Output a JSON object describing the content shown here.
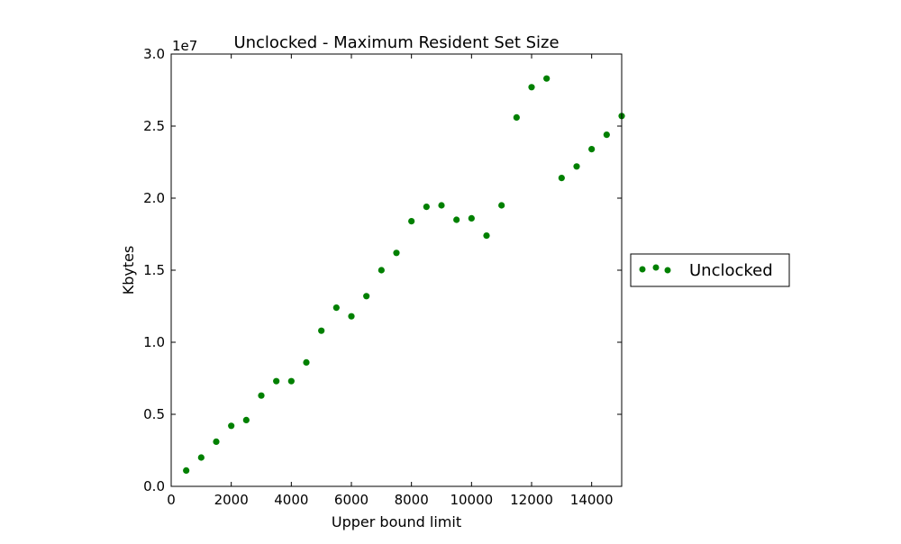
{
  "chart_data": {
    "type": "scatter",
    "title": "Unclocked - Maximum Resident Set Size",
    "xlabel": "Upper bound limit",
    "ylabel": "Kbytes",
    "y_scale_label": "1e7",
    "xlim": [
      0,
      15000
    ],
    "ylim": [
      0,
      3.0
    ],
    "x_ticks": [
      0,
      2000,
      4000,
      6000,
      8000,
      10000,
      12000,
      14000
    ],
    "x_tick_labels": [
      "0",
      "2000",
      "4000",
      "6000",
      "8000",
      "10000",
      "12000",
      "14000"
    ],
    "y_ticks": [
      0,
      0.5,
      1.0,
      1.5,
      2.0,
      2.5,
      3.0
    ],
    "y_tick_labels": [
      "0.0",
      "0.5",
      "1.0",
      "1.5",
      "2.0",
      "2.5",
      "3.0"
    ],
    "grid": false,
    "legend_position": "outside-right",
    "series": [
      {
        "name": "Unclocked",
        "color": "#008000",
        "x": [
          500,
          1000,
          1500,
          2000,
          2500,
          3000,
          3500,
          4000,
          4500,
          5000,
          5500,
          6000,
          6500,
          7000,
          7500,
          8000,
          8500,
          9000,
          9500,
          10000,
          10500,
          11000,
          11500,
          12000,
          12500,
          13000,
          13500,
          14000,
          14500,
          15000
        ],
        "y": [
          0.11,
          0.2,
          0.31,
          0.42,
          0.46,
          0.63,
          0.73,
          0.73,
          0.86,
          1.08,
          1.24,
          1.18,
          1.32,
          1.5,
          1.62,
          1.84,
          1.94,
          1.95,
          1.85,
          1.86,
          1.74,
          1.95,
          2.56,
          2.77,
          2.83,
          2.14,
          2.22,
          2.34,
          2.44,
          2.57
        ]
      }
    ]
  }
}
